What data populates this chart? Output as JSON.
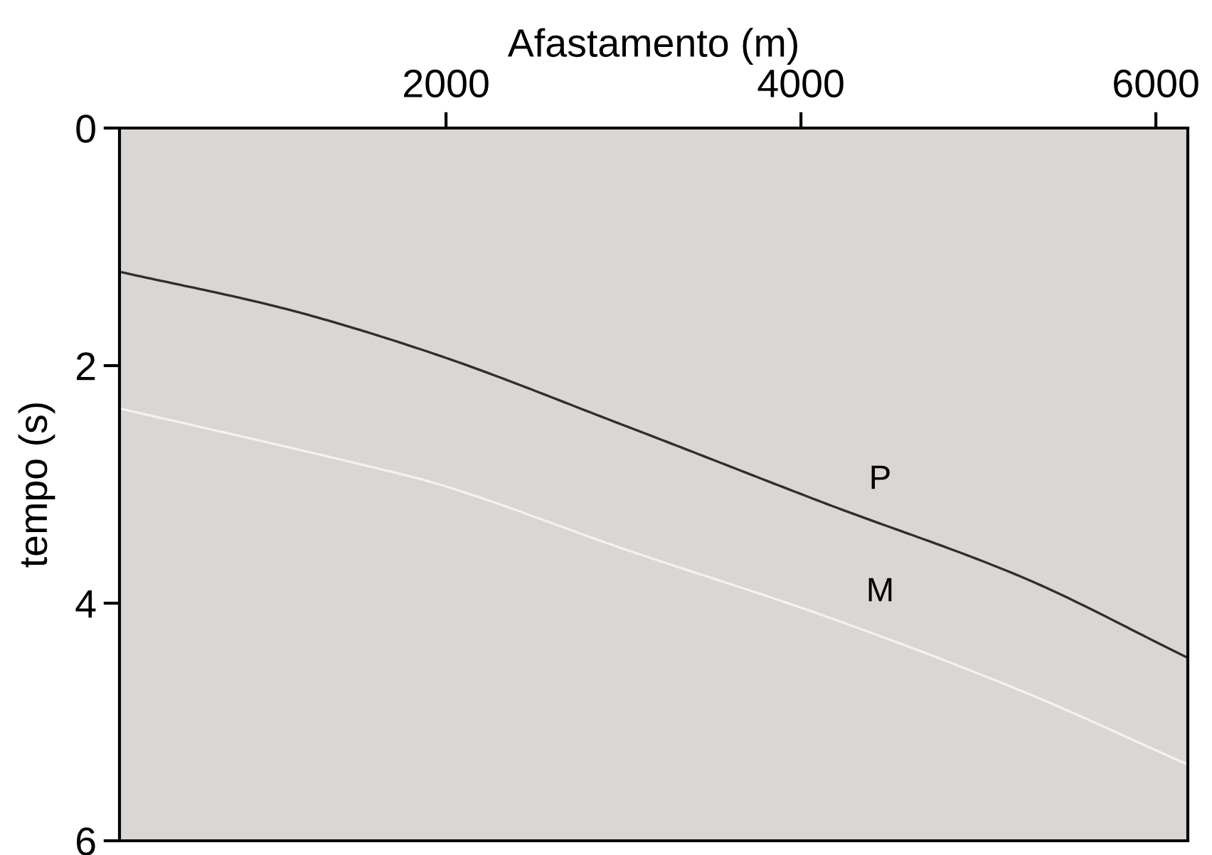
{
  "chart_data": {
    "type": "line",
    "xlabel": "Afastamento (m)",
    "ylabel": "tempo (s)",
    "xlim": [
      160,
      6180
    ],
    "xticks": [
      2000,
      4000,
      6000
    ],
    "ylim": [
      6,
      0
    ],
    "yticks": [
      0,
      2,
      4,
      6
    ],
    "grid": false,
    "legend": false,
    "marker": "none",
    "line_style": "solid",
    "series": [
      {
        "name": "P",
        "color": "#2e2e2e",
        "x": [
          160,
          1090,
          1892,
          3015,
          4138,
          5261,
          6167
        ],
        "values": [
          1.21,
          1.52,
          1.88,
          2.51,
          3.16,
          3.79,
          4.45
        ]
      },
      {
        "name": "M",
        "color": "#f2f2f2",
        "x": [
          160,
          1571,
          1892,
          3015,
          4138,
          5261,
          6167
        ],
        "values": [
          2.36,
          2.85,
          2.97,
          3.55,
          4.11,
          4.75,
          5.35
        ]
      }
    ]
  }
}
